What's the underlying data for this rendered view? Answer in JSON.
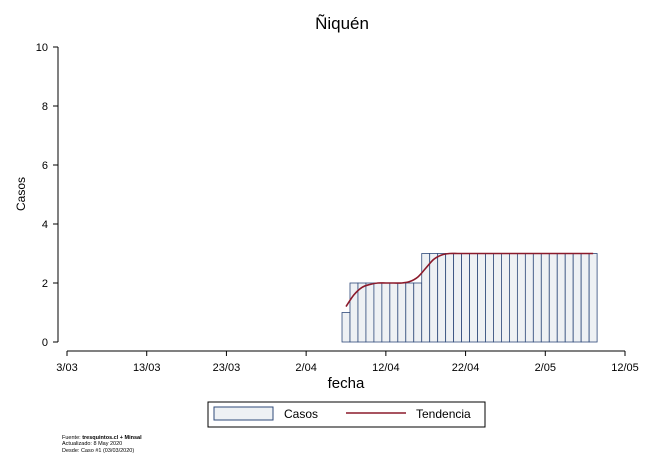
{
  "chart_data": {
    "type": "bar",
    "title": "Ñiquén",
    "xlabel": "fecha",
    "ylabel": "Casos",
    "ylim": [
      0,
      10
    ],
    "yticks": [
      0,
      2,
      4,
      6,
      8,
      10
    ],
    "xlim": [
      "2020-03-03",
      "2020-05-12"
    ],
    "xticks": [
      "2020-03-03",
      "2020-03-13",
      "2020-03-23",
      "2020-04-02",
      "2020-04-12",
      "2020-04-22",
      "2020-05-02",
      "2020-05-12"
    ],
    "xtick_labels": [
      "3/03",
      "13/03",
      "23/03",
      "2/04",
      "12/04",
      "22/04",
      "2/05",
      "12/05"
    ],
    "grid": false,
    "legend_position": "bottom",
    "series": [
      {
        "name": "Casos",
        "kind": "bar",
        "fill": "#eef1f4",
        "stroke": "#2f4a7a",
        "dates": [
          "2020-04-07",
          "2020-04-08",
          "2020-04-09",
          "2020-04-10",
          "2020-04-11",
          "2020-04-12",
          "2020-04-13",
          "2020-04-14",
          "2020-04-15",
          "2020-04-16",
          "2020-04-17",
          "2020-04-18",
          "2020-04-19",
          "2020-04-20",
          "2020-04-21",
          "2020-04-22",
          "2020-04-23",
          "2020-04-24",
          "2020-04-25",
          "2020-04-26",
          "2020-04-27",
          "2020-04-28",
          "2020-04-29",
          "2020-04-30",
          "2020-05-01",
          "2020-05-02",
          "2020-05-03",
          "2020-05-04",
          "2020-05-05",
          "2020-05-06",
          "2020-05-07",
          "2020-05-08"
        ],
        "values": [
          1,
          2,
          2,
          2,
          2,
          2,
          2,
          2,
          2,
          2,
          3,
          3,
          3,
          3,
          3,
          3,
          3,
          3,
          3,
          3,
          3,
          3,
          3,
          3,
          3,
          3,
          3,
          3,
          3,
          3,
          3,
          3
        ]
      },
      {
        "name": "Tendencia",
        "kind": "line",
        "stroke": "#8b1a2b",
        "dates": [
          "2020-04-07",
          "2020-04-08",
          "2020-04-09",
          "2020-04-10",
          "2020-04-11",
          "2020-04-12",
          "2020-04-13",
          "2020-04-14",
          "2020-04-15",
          "2020-04-16",
          "2020-04-17",
          "2020-04-18",
          "2020-04-19",
          "2020-04-20",
          "2020-04-21",
          "2020-04-22",
          "2020-04-23",
          "2020-04-24",
          "2020-04-25",
          "2020-04-26",
          "2020-04-27",
          "2020-04-28",
          "2020-04-29",
          "2020-04-30",
          "2020-05-01",
          "2020-05-02",
          "2020-05-03",
          "2020-05-04",
          "2020-05-05",
          "2020-05-06",
          "2020-05-07",
          "2020-05-08"
        ],
        "values": [
          1.2,
          1.6,
          1.85,
          1.95,
          2.0,
          2.0,
          2.0,
          2.0,
          2.05,
          2.2,
          2.5,
          2.8,
          2.95,
          3.0,
          3.0,
          3.0,
          3.0,
          3.0,
          3.0,
          3.0,
          3.0,
          3.0,
          3.0,
          3.0,
          3.0,
          3.0,
          3.0,
          3.0,
          3.0,
          3.0,
          3.0,
          3.0
        ]
      }
    ]
  },
  "footer": {
    "source_label": "Fuente: ",
    "source_bold": "tresquintos.cl + Minsal",
    "updated": "Actualizado: 8 May 2020",
    "since": "Desde: Caso #1  (03/03/2020)"
  }
}
